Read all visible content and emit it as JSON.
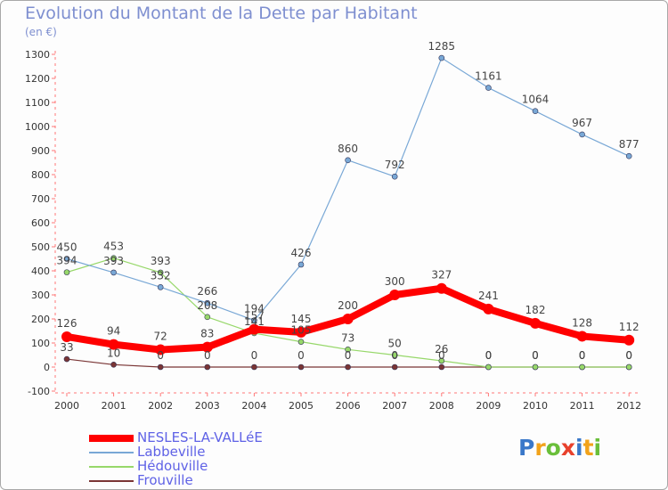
{
  "title": "Evolution du Montant de la Dette par Habitant",
  "unit_label": "(en €)",
  "logo": {
    "text": "Proxiti",
    "colors": [
      "#3a78c9",
      "#f2a31b",
      "#6abf3a",
      "#e8412c"
    ]
  },
  "chart_data": {
    "type": "line",
    "x": [
      "2000",
      "2001",
      "2002",
      "2003",
      "2004",
      "2005",
      "2006",
      "2007",
      "2008",
      "2009",
      "2010",
      "2011",
      "2012"
    ],
    "ylim": [
      -100,
      1300
    ],
    "yticks": [
      "-100",
      "0",
      "100",
      "200",
      "300",
      "400",
      "500",
      "600",
      "700",
      "800",
      "900",
      "1000",
      "1100",
      "1200",
      "1300"
    ],
    "grid": false,
    "legend_position": "bottom-left",
    "series": [
      {
        "name": "NESLES-LA-VALLéE",
        "color": "#ff0000",
        "values": [
          126,
          94,
          72,
          83,
          157,
          145,
          200,
          300,
          327,
          241,
          182,
          128,
          112
        ],
        "labels": [
          "126",
          "94",
          "72",
          "83",
          "157",
          "145",
          "200",
          "300",
          "327",
          "241",
          "182",
          "128",
          "112"
        ]
      },
      {
        "name": "Labbeville",
        "color": "#79a8d6",
        "values": [
          450,
          393,
          332,
          266,
          194,
          426,
          860,
          792,
          1285,
          1161,
          1064,
          967,
          877
        ],
        "labels": [
          "450",
          "393",
          "332",
          "266",
          "194",
          "426",
          "860",
          "792",
          "1285",
          "1161",
          "1064",
          "967",
          "877"
        ]
      },
      {
        "name": "Hédouville",
        "color": "#97d86a",
        "values": [
          394,
          453,
          393,
          208,
          141,
          105,
          73,
          50,
          26,
          0,
          0,
          0,
          0
        ],
        "labels": [
          "394",
          "453",
          "393",
          "208",
          "141",
          "105",
          "73",
          "50",
          "26",
          "0",
          "0",
          "0",
          "0"
        ]
      },
      {
        "name": "Frouville",
        "color": "#7a3535",
        "values": [
          33,
          10,
          0,
          0,
          0,
          0,
          0,
          0,
          0,
          0,
          0,
          0,
          0
        ],
        "labels": [
          "33",
          "10",
          "0",
          "0",
          "0",
          "0",
          "0",
          "0",
          "0",
          "0",
          "0",
          "0",
          "0"
        ]
      }
    ]
  }
}
